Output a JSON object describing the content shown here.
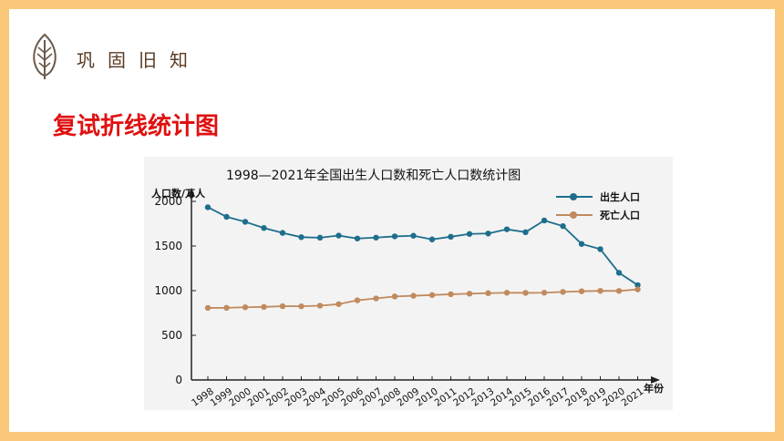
{
  "header": {
    "section_title": "巩固旧知",
    "subtitle": "复试折线统计图",
    "icon": "leaf-icon"
  },
  "colors": {
    "page_border": "#f9c87a",
    "subtitle": "#e01010",
    "births": "#1d6e8c",
    "deaths": "#c08a5e"
  },
  "chart_data": {
    "type": "line",
    "title": "1998—2021年全国出生人口数和死亡人口数统计图",
    "ylabel": "人口数/万人",
    "xlabel": "年份",
    "ylim": [
      0,
      2000
    ],
    "yticks": [
      0,
      500,
      1000,
      1500,
      2000
    ],
    "grid": false,
    "legend_position": "top-right",
    "categories": [
      "1998",
      "1999",
      "2000",
      "2001",
      "2002",
      "2003",
      "2004",
      "2005",
      "2006",
      "2007",
      "2008",
      "2009",
      "2010",
      "2011",
      "2012",
      "2013",
      "2014",
      "2015",
      "2016",
      "2017",
      "2018",
      "2019",
      "2020",
      "2021"
    ],
    "series": [
      {
        "name": "出生人口",
        "color": "#1d6e8c",
        "values": [
          1934,
          1827,
          1771,
          1702,
          1647,
          1599,
          1593,
          1617,
          1584,
          1594,
          1608,
          1615,
          1574,
          1604,
          1635,
          1640,
          1687,
          1655,
          1786,
          1723,
          1523,
          1465,
          1200,
          1062
        ]
      },
      {
        "name": "死亡人口",
        "color": "#c08a5e",
        "values": [
          807,
          808,
          814,
          818,
          826,
          825,
          832,
          849,
          892,
          913,
          935,
          943,
          951,
          960,
          966,
          972,
          977,
          975,
          977,
          986,
          993,
          998,
          997,
          1014
        ]
      }
    ]
  }
}
